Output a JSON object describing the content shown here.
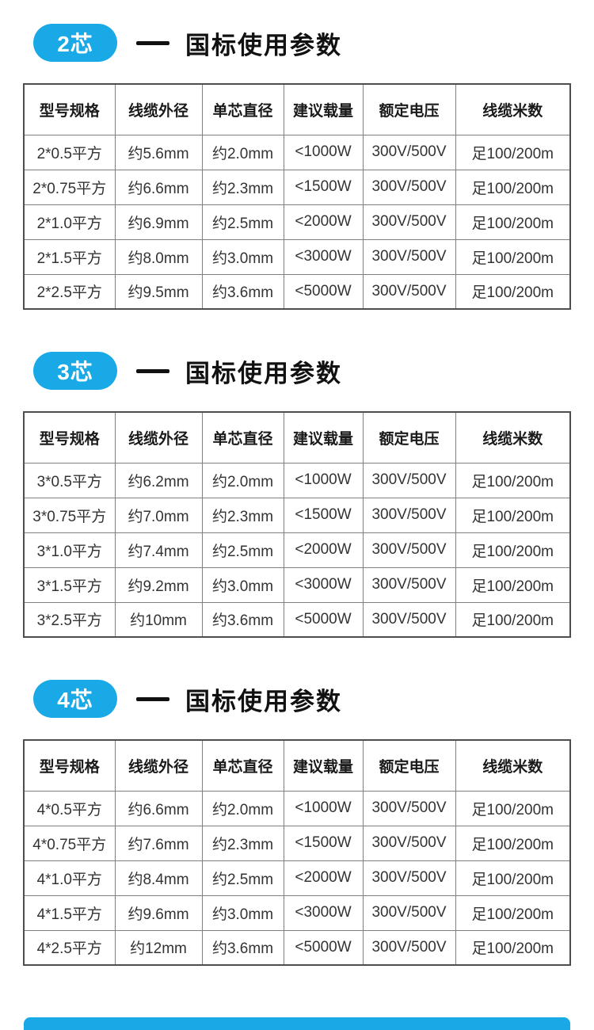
{
  "colors": {
    "accent": "#18a9e6",
    "table_border_outer": "#4d4d4d",
    "table_border_inner": "#808080"
  },
  "table_columns": [
    "型号规格",
    "线缆外径",
    "单芯直径",
    "建议载量",
    "额定电压",
    "线缆米数"
  ],
  "sections": [
    {
      "badge": "2芯",
      "title": "国标使用参数",
      "rows": [
        [
          "2*0.5平方",
          "约5.6mm",
          "约2.0mm",
          "<1000W",
          "300V/500V",
          "足100/200m"
        ],
        [
          "2*0.75平方",
          "约6.6mm",
          "约2.3mm",
          "<1500W",
          "300V/500V",
          "足100/200m"
        ],
        [
          "2*1.0平方",
          "约6.9mm",
          "约2.5mm",
          "<2000W",
          "300V/500V",
          "足100/200m"
        ],
        [
          "2*1.5平方",
          "约8.0mm",
          "约3.0mm",
          "<3000W",
          "300V/500V",
          "足100/200m"
        ],
        [
          "2*2.5平方",
          "约9.5mm",
          "约3.6mm",
          "<5000W",
          "300V/500V",
          "足100/200m"
        ]
      ]
    },
    {
      "badge": "3芯",
      "title": "国标使用参数",
      "rows": [
        [
          "3*0.5平方",
          "约6.2mm",
          "约2.0mm",
          "<1000W",
          "300V/500V",
          "足100/200m"
        ],
        [
          "3*0.75平方",
          "约7.0mm",
          "约2.3mm",
          "<1500W",
          "300V/500V",
          "足100/200m"
        ],
        [
          "3*1.0平方",
          "约7.4mm",
          "约2.5mm",
          "<2000W",
          "300V/500V",
          "足100/200m"
        ],
        [
          "3*1.5平方",
          "约9.2mm",
          "约3.0mm",
          "<3000W",
          "300V/500V",
          "足100/200m"
        ],
        [
          "3*2.5平方",
          "约10mm",
          "约3.6mm",
          "<5000W",
          "300V/500V",
          "足100/200m"
        ]
      ]
    },
    {
      "badge": "4芯",
      "title": "国标使用参数",
      "rows": [
        [
          "4*0.5平方",
          "约6.6mm",
          "约2.0mm",
          "<1000W",
          "300V/500V",
          "足100/200m"
        ],
        [
          "4*0.75平方",
          "约7.6mm",
          "约2.3mm",
          "<1500W",
          "300V/500V",
          "足100/200m"
        ],
        [
          "4*1.0平方",
          "约8.4mm",
          "约2.5mm",
          "<2000W",
          "300V/500V",
          "足100/200m"
        ],
        [
          "4*1.5平方",
          "约9.6mm",
          "约3.0mm",
          "<3000W",
          "300V/500V",
          "足100/200m"
        ],
        [
          "4*2.5平方",
          "约12mm",
          "约3.6mm",
          "<5000W",
          "300V/500V",
          "足100/200m"
        ]
      ]
    }
  ]
}
